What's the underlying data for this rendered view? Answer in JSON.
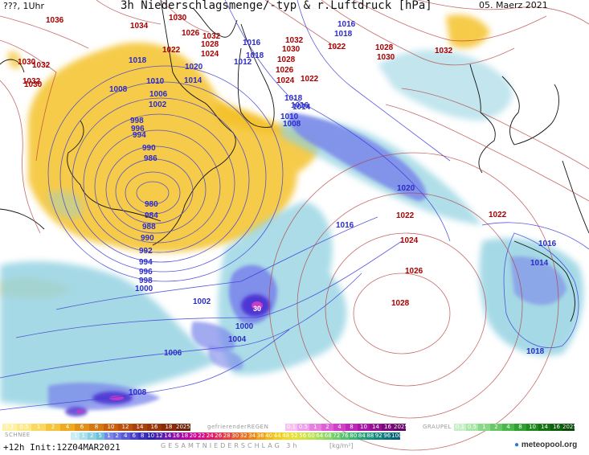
{
  "header": {
    "left": "???, 1Uhr",
    "title": "3h Niederschlagsmenge/-typ & r.Luftdruck [hPa]",
    "date": "05. Maerz 2021"
  },
  "isobar_labels": [
    {
      "text": "1036",
      "kind": "hi"
    },
    {
      "text": "1034",
      "kind": "hi"
    },
    {
      "text": "1030",
      "kind": "hi"
    },
    {
      "text": "1026",
      "kind": "hi"
    },
    {
      "text": "1032",
      "kind": "hi"
    },
    {
      "text": "1028",
      "kind": "hi"
    },
    {
      "text": "1024",
      "kind": "hi"
    },
    {
      "text": "1022",
      "kind": "hi"
    },
    {
      "text": "1020",
      "kind": "lo"
    },
    {
      "text": "1014",
      "kind": "lo"
    },
    {
      "text": "1018",
      "kind": "lo"
    },
    {
      "text": "1010",
      "kind": "lo"
    },
    {
      "text": "1008",
      "kind": "lo"
    },
    {
      "text": "1006",
      "kind": "lo"
    },
    {
      "text": "1002",
      "kind": "lo"
    },
    {
      "text": "998",
      "kind": "lo"
    },
    {
      "text": "996",
      "kind": "lo"
    },
    {
      "text": "994",
      "kind": "lo"
    },
    {
      "text": "990",
      "kind": "lo"
    },
    {
      "text": "986",
      "kind": "lo"
    },
    {
      "text": "980",
      "kind": "lo"
    },
    {
      "text": "984",
      "kind": "lo"
    },
    {
      "text": "988",
      "kind": "lo"
    },
    {
      "text": "990",
      "kind": "lo"
    },
    {
      "text": "992",
      "kind": "lo"
    },
    {
      "text": "994",
      "kind": "lo"
    },
    {
      "text": "996",
      "kind": "lo"
    },
    {
      "text": "998",
      "kind": "lo"
    },
    {
      "text": "1000",
      "kind": "lo"
    },
    {
      "text": "1002",
      "kind": "lo"
    },
    {
      "text": "1000",
      "kind": "lo"
    },
    {
      "text": "1004",
      "kind": "lo"
    },
    {
      "text": "1006",
      "kind": "lo"
    },
    {
      "text": "1008",
      "kind": "lo"
    },
    {
      "text": "1032",
      "kind": "hi"
    },
    {
      "text": "1030",
      "kind": "hi"
    },
    {
      "text": "1016",
      "kind": "lo"
    },
    {
      "text": "1018",
      "kind": "lo"
    },
    {
      "text": "1012",
      "kind": "lo"
    },
    {
      "text": "1032",
      "kind": "hi"
    },
    {
      "text": "1030",
      "kind": "hi"
    },
    {
      "text": "1028",
      "kind": "hi"
    },
    {
      "text": "1026",
      "kind": "hi"
    },
    {
      "text": "1024",
      "kind": "hi"
    },
    {
      "text": "1022",
      "kind": "hi"
    },
    {
      "text": "1018",
      "kind": "lo"
    },
    {
      "text": "1016",
      "kind": "lo"
    },
    {
      "text": "1014",
      "kind": "lo"
    },
    {
      "text": "1010",
      "kind": "lo"
    },
    {
      "text": "1008",
      "kind": "lo"
    },
    {
      "text": "1016",
      "kind": "lo"
    },
    {
      "text": "1018",
      "kind": "lo"
    },
    {
      "text": "1022",
      "kind": "hi"
    },
    {
      "text": "1028",
      "kind": "hi"
    },
    {
      "text": "1030",
      "kind": "hi"
    },
    {
      "text": "1032",
      "kind": "hi"
    },
    {
      "text": "1020",
      "kind": "lo"
    },
    {
      "text": "1022",
      "kind": "hi"
    },
    {
      "text": "1022",
      "kind": "hi"
    },
    {
      "text": "1024",
      "kind": "hi"
    },
    {
      "text": "1026",
      "kind": "hi"
    },
    {
      "text": "1028",
      "kind": "hi"
    },
    {
      "text": "1016",
      "kind": "lo"
    },
    {
      "text": "1016",
      "kind": "lo"
    },
    {
      "text": "1014",
      "kind": "lo"
    },
    {
      "text": "1018",
      "kind": "lo"
    },
    {
      "text": "1030",
      "kind": "hi"
    },
    {
      "text": "1032",
      "kind": "hi"
    }
  ],
  "precip_max_label": "30",
  "legend": {
    "schnee_label": "SCHNEE",
    "schnee_scale": [
      "0.1",
      "0.5",
      "1",
      "2",
      "4",
      "6",
      "8",
      "10",
      "12",
      "14",
      "16",
      "18",
      "2025+"
    ],
    "freezing_label": "gefrierenderREGEN",
    "freezing_scale": [
      "0.1",
      "0.5",
      "1",
      "2",
      "4",
      "8",
      "10",
      "14",
      "16",
      "2025+"
    ],
    "graupel_label": "GRAUPEL",
    "graupel_scale": [
      "0.1",
      "0.5",
      "1",
      "2",
      "4",
      "8",
      "10",
      "14",
      "16",
      "2025+"
    ],
    "total_scale": [
      ".1",
      "1",
      "2",
      "5",
      "1",
      "2",
      "4",
      "6",
      "8",
      "10",
      "12",
      "14",
      "16",
      "18",
      "20",
      "22",
      "24",
      "26",
      "28",
      "30",
      "32",
      "34",
      "36",
      "40",
      "44",
      "48",
      "52",
      "56",
      "60",
      "64",
      "68",
      "72",
      "76",
      "80",
      "84",
      "88",
      "92",
      "96",
      "100"
    ],
    "gesamt_label": "GESAMTNIEDERSCHLAG 3h",
    "unit": "[kg/m²]",
    "init": "+12h Init:12Z04MAR2021",
    "logo": "meteopool.org"
  },
  "colors": {
    "snow": "#f2c12e",
    "rain_light": "#8fd0e0",
    "rain_mid": "#7a86ea",
    "rain_heavy": "#4a2fd0",
    "rain_extreme": "#c63cc8",
    "isobar_high": "#b43a3a",
    "isobar_low": "#3e3ed8"
  }
}
